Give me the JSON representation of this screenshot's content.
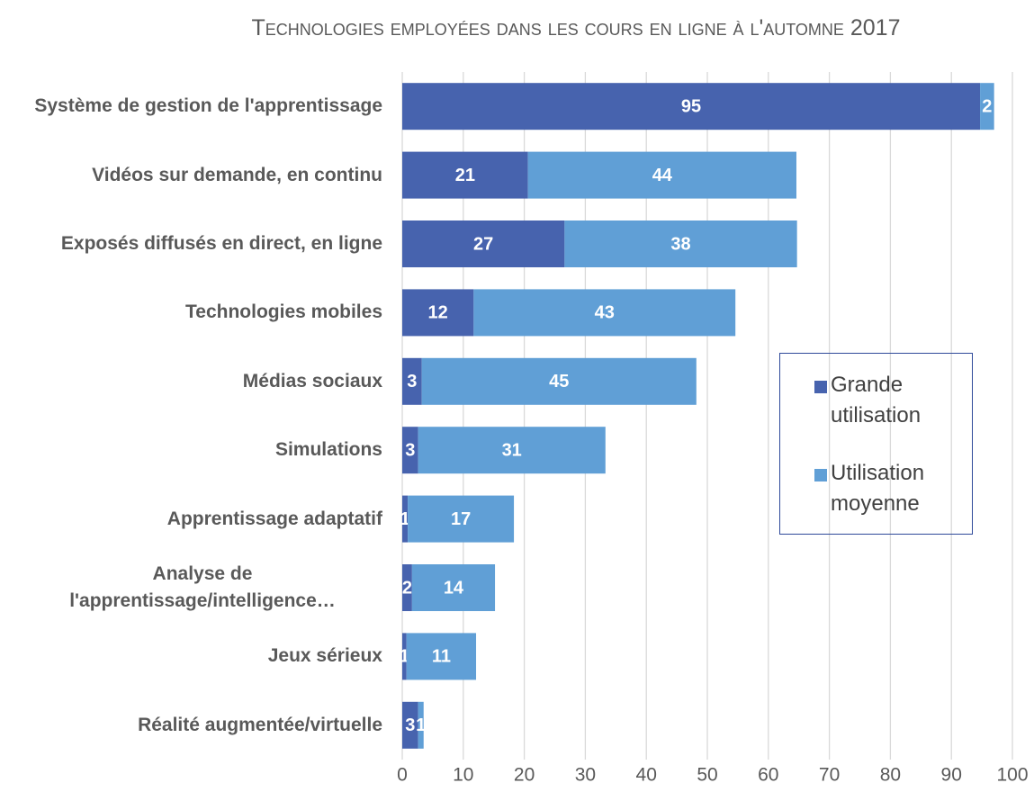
{
  "chart_data": {
    "type": "stacked-barh",
    "title": "Technologies employées dans les cours en ligne à l'automne 2017",
    "categories": [
      "Système de gestion de l'apprentissage",
      "Vidéos sur demande, en continu",
      "Exposés diffusés en direct, en ligne",
      "Technologies mobiles",
      "Médias sociaux",
      "Simulations",
      "Apprentissage adaptatif",
      "Analyse de l'apprentissage/intelligence…",
      "Jeux sérieux",
      "Réalité augmentée/virtuelle"
    ],
    "series": [
      {
        "name": "Grande utilisation",
        "color": "#4763ae",
        "values": [
          94.7,
          20.6,
          26.6,
          11.7,
          3.2,
          2.6,
          0.9,
          1.6,
          0.7,
          2.6
        ],
        "value_labels": [
          "95",
          "21",
          "27",
          "12",
          "3",
          "3",
          "1",
          "2",
          "1",
          "3"
        ]
      },
      {
        "name": "Utilisation moyenne",
        "color": "#609fd6",
        "values": [
          2.3,
          44.0,
          38.1,
          42.9,
          45.0,
          30.7,
          17.4,
          13.6,
          11.4,
          0.9
        ],
        "value_labels": [
          "2",
          "44",
          "38",
          "43",
          "45",
          "31",
          "17",
          "14",
          "11",
          "1"
        ]
      }
    ],
    "xlim": [
      0,
      100
    ],
    "xticks": [
      0,
      10,
      20,
      30,
      40,
      50,
      60,
      70,
      80,
      90,
      100
    ],
    "grid": true,
    "legend": "right"
  }
}
